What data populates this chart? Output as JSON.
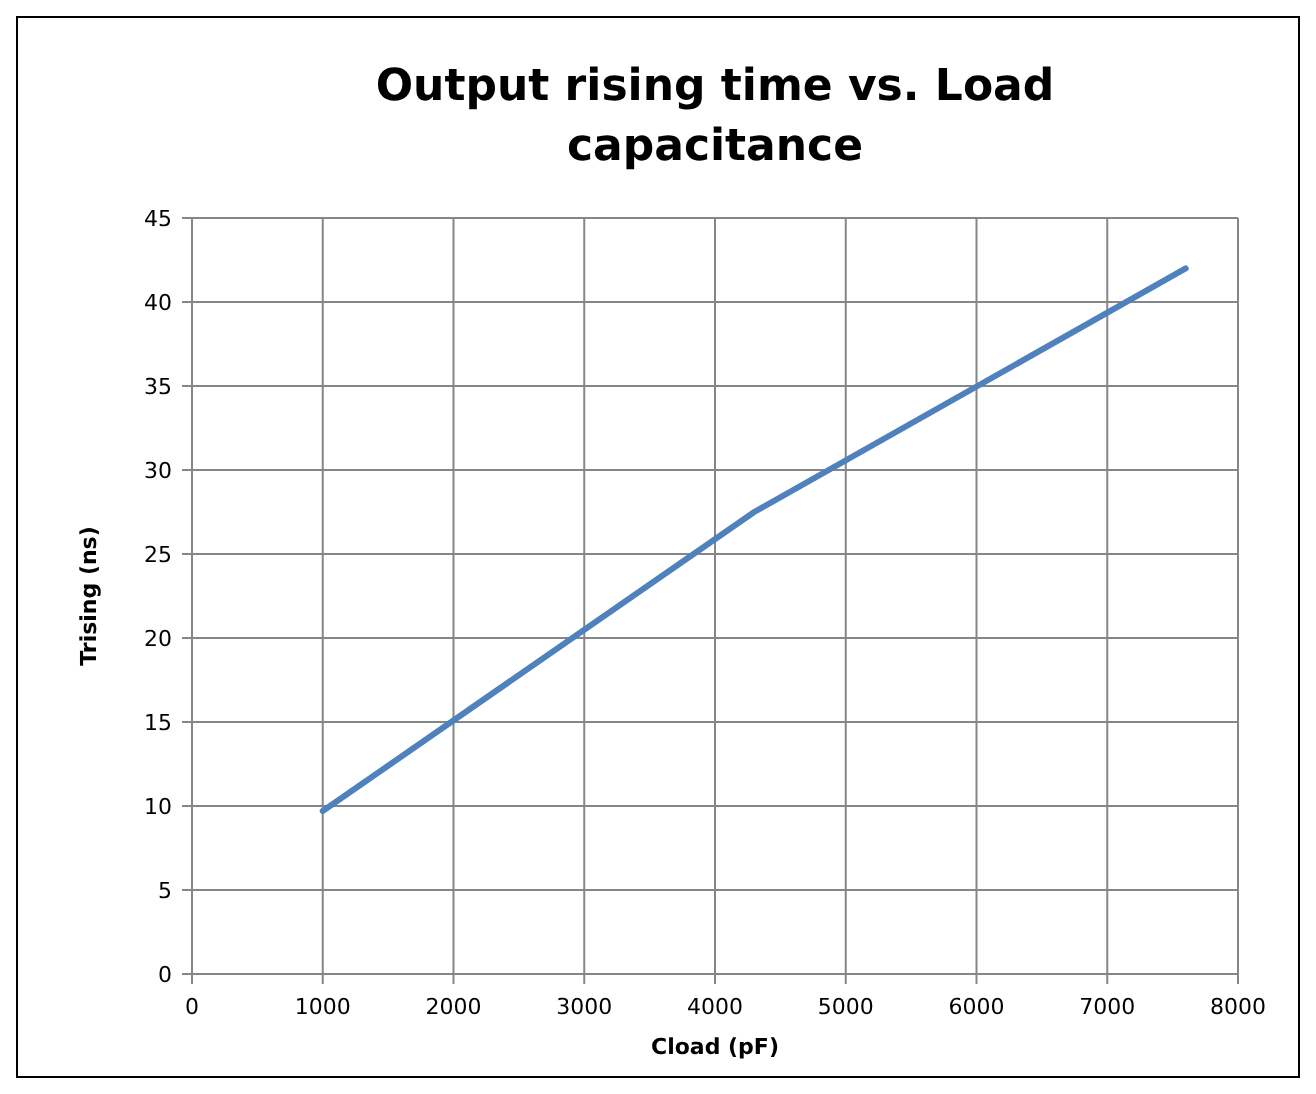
{
  "chart_data": {
    "type": "line",
    "title": "Output rising time vs. Load capacitance",
    "xlabel": "Cload (pF)",
    "ylabel": "Trising (ns)",
    "x": [
      1000,
      4300,
      7600
    ],
    "series": [
      {
        "color": "#4f81bd",
        "values": [
          9.7,
          27.5,
          42
        ]
      }
    ],
    "xlim": [
      0,
      8000
    ],
    "xticks": [
      0,
      1000,
      2000,
      3000,
      4000,
      5000,
      6000,
      7000,
      8000
    ],
    "ylim": [
      0,
      45
    ],
    "yticks": [
      0,
      5,
      10,
      15,
      20,
      25,
      30,
      35,
      40,
      45
    ],
    "grid": true,
    "marker": "none",
    "line_style": "solid"
  }
}
